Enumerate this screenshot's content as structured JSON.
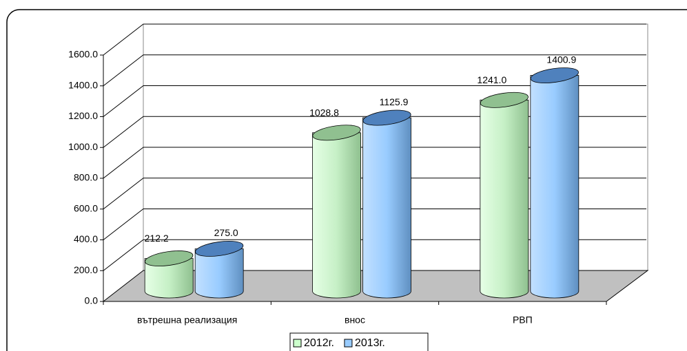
{
  "chart_data": {
    "type": "bar3d",
    "categories": [
      "вътрешна реализация",
      "внос",
      "РВП"
    ],
    "series": [
      {
        "name": "2012г.",
        "color": "#ccffcc",
        "values": [
          212.2,
          1028.8,
          1241.0
        ],
        "value_labels": [
          "212.2",
          "1028.8",
          "1241.0"
        ]
      },
      {
        "name": "2013г.",
        "color": "#99ccff",
        "values": [
          275.0,
          1125.9,
          1400.9
        ],
        "value_labels": [
          "275.0",
          "1125.9",
          "1400.9"
        ]
      }
    ],
    "ylim": [
      0,
      1600
    ],
    "yticks": [
      {
        "value": 0,
        "label": "0.0"
      },
      {
        "value": 200,
        "label": "200.0"
      },
      {
        "value": 400,
        "label": "400.0"
      },
      {
        "value": 600,
        "label": "600.0"
      },
      {
        "value": 800,
        "label": "800.0"
      },
      {
        "value": 1000,
        "label": "1000.0"
      },
      {
        "value": 1200,
        "label": "1200.0"
      },
      {
        "value": 1400,
        "label": "1400.0"
      },
      {
        "value": 1600,
        "label": "1600.0"
      }
    ],
    "grid": true,
    "legend": "bottom"
  }
}
